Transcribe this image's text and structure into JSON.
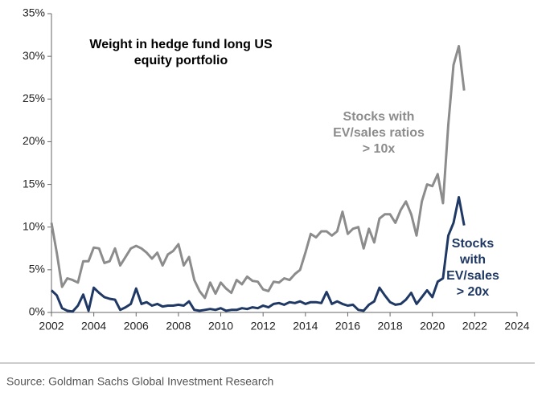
{
  "chart_data": {
    "type": "line",
    "title": "Weight in hedge fund long US equity portfolio",
    "source": "Source: Goldman Sachs Global Investment Research",
    "x": [
      2002,
      2002.25,
      2002.5,
      2002.75,
      2003,
      2003.25,
      2003.5,
      2003.75,
      2004,
      2004.25,
      2004.5,
      2004.75,
      2005,
      2005.25,
      2005.5,
      2005.75,
      2006,
      2006.25,
      2006.5,
      2006.75,
      2007,
      2007.25,
      2007.5,
      2007.75,
      2008,
      2008.25,
      2008.5,
      2008.75,
      2009,
      2009.25,
      2009.5,
      2009.75,
      2010,
      2010.25,
      2010.5,
      2010.75,
      2011,
      2011.25,
      2011.5,
      2011.75,
      2012,
      2012.25,
      2012.5,
      2012.75,
      2013,
      2013.25,
      2013.5,
      2013.75,
      2014,
      2014.25,
      2014.5,
      2014.75,
      2015,
      2015.25,
      2015.5,
      2015.75,
      2016,
      2016.25,
      2016.5,
      2016.75,
      2017,
      2017.25,
      2017.5,
      2017.75,
      2018,
      2018.25,
      2018.5,
      2018.75,
      2019,
      2019.25,
      2019.5,
      2019.75,
      2020,
      2020.25,
      2020.5,
      2020.75,
      2021,
      2021.25,
      2021.5
    ],
    "series": [
      {
        "name": "Stocks with EV/sales ratios > 10x",
        "color": "#8c8c8c",
        "values": [
          10.5,
          7,
          3,
          4,
          3.8,
          3.5,
          6,
          6,
          7.6,
          7.5,
          5.8,
          6,
          7.5,
          5.5,
          6.5,
          7.5,
          7.8,
          7.5,
          7,
          6.3,
          7,
          5.5,
          6.8,
          7.2,
          8,
          5.5,
          6.5,
          3.8,
          2.5,
          1.7,
          3.5,
          2.2,
          3.5,
          2.8,
          2.3,
          3.8,
          3.3,
          4.2,
          3.7,
          3.6,
          2.7,
          2.5,
          3.6,
          3.5,
          4,
          3.8,
          4.5,
          5,
          7,
          9.2,
          8.8,
          9.5,
          9.5,
          9,
          9.5,
          11.8,
          9.2,
          9.8,
          10,
          7.5,
          9.8,
          8.2,
          11,
          11.5,
          11.5,
          10.5,
          12,
          13,
          11.5,
          9,
          13,
          15,
          14.8,
          16.2,
          12.8,
          22,
          29,
          31.2,
          26
        ]
      },
      {
        "name": "Stocks with EV/sales > 20x",
        "color": "#1f3864",
        "values": [
          2.6,
          2,
          0.5,
          0.2,
          0.1,
          0.8,
          2.1,
          0.2,
          2.9,
          2.3,
          1.8,
          1.6,
          1.5,
          0.3,
          0.6,
          1,
          2.8,
          1,
          1.2,
          0.8,
          1,
          0.7,
          0.8,
          0.8,
          0.9,
          0.8,
          1.3,
          0.3,
          0.2,
          0.3,
          0.4,
          0.3,
          0.5,
          0.2,
          0.3,
          0.3,
          0.5,
          0.4,
          0.6,
          0.5,
          0.8,
          0.6,
          1,
          1.1,
          0.9,
          1.2,
          1.1,
          1.3,
          1,
          1.2,
          1.2,
          1.1,
          2.4,
          1,
          1.3,
          1,
          0.8,
          0.9,
          0.3,
          0.2,
          0.9,
          1.3,
          2.9,
          2,
          1.2,
          0.9,
          1,
          1.5,
          2.3,
          1,
          1.8,
          2.6,
          1.8,
          3.6,
          4,
          9,
          10.5,
          13.5,
          10.2
        ]
      }
    ],
    "xlim": [
      2002,
      2024
    ],
    "xticks": [
      2002,
      2004,
      2006,
      2008,
      2010,
      2012,
      2014,
      2016,
      2018,
      2020,
      2022,
      2024
    ],
    "ylim": [
      0,
      35
    ],
    "yticks": [
      {
        "value": 0,
        "label": "0%"
      },
      {
        "value": 5,
        "label": "5%"
      },
      {
        "value": 10,
        "label": "10%"
      },
      {
        "value": 15,
        "label": "15%"
      },
      {
        "value": 20,
        "label": "20%"
      },
      {
        "value": 25,
        "label": "25%"
      },
      {
        "value": 30,
        "label": "30%"
      },
      {
        "value": 35,
        "label": "35%"
      }
    ],
    "grid": false
  }
}
